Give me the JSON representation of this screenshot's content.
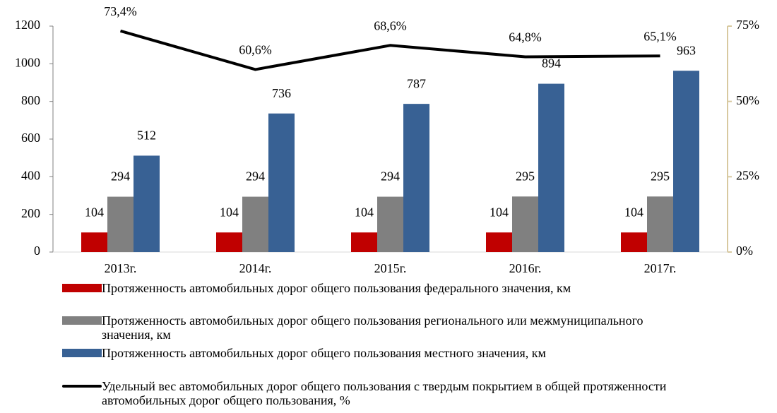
{
  "chart_data": {
    "type": "bar",
    "categories": [
      "2013г.",
      "2014г.",
      "2015г.",
      "2016г.",
      "2017г."
    ],
    "series": [
      {
        "name": "Протяженность автомобильных дорог общего пользования федерального значения, км",
        "color": "#c00000",
        "values": [
          104,
          104,
          104,
          104,
          104
        ]
      },
      {
        "name": "Протяженность автомобильных дорог общего пользования регионального или межмуниципального значения, км",
        "color": "#808080",
        "values": [
          294,
          294,
          294,
          295,
          295
        ]
      },
      {
        "name": "Протяженность автомобильных дорог общего пользования местного значения, км",
        "color": "#386194",
        "values": [
          512,
          736,
          787,
          894,
          963
        ]
      },
      {
        "name": "Удельный вес автомобильных дорог общего пользования с твердым покрытием в общей протяженности автомобильных дорог общего пользования, %",
        "color": "#000000",
        "type": "line",
        "axis": "y2",
        "values": [
          73.4,
          60.6,
          68.6,
          64.8,
          65.1
        ],
        "value_labels": [
          "73,4%",
          "60,6%",
          "68,6%",
          "64,8%",
          "65,1%"
        ]
      }
    ],
    "ylim": [
      0,
      1200
    ],
    "yticks": [
      0,
      200,
      400,
      600,
      800,
      1000,
      1200
    ],
    "y2lim": [
      0,
      75
    ],
    "y2ticks": [
      {
        "value": 0,
        "label": "0%"
      },
      {
        "value": 25,
        "label": "25%"
      },
      {
        "value": 50,
        "label": "50%"
      },
      {
        "value": 75,
        "label": "75%"
      }
    ],
    "grid": false,
    "legend": "bottom"
  }
}
